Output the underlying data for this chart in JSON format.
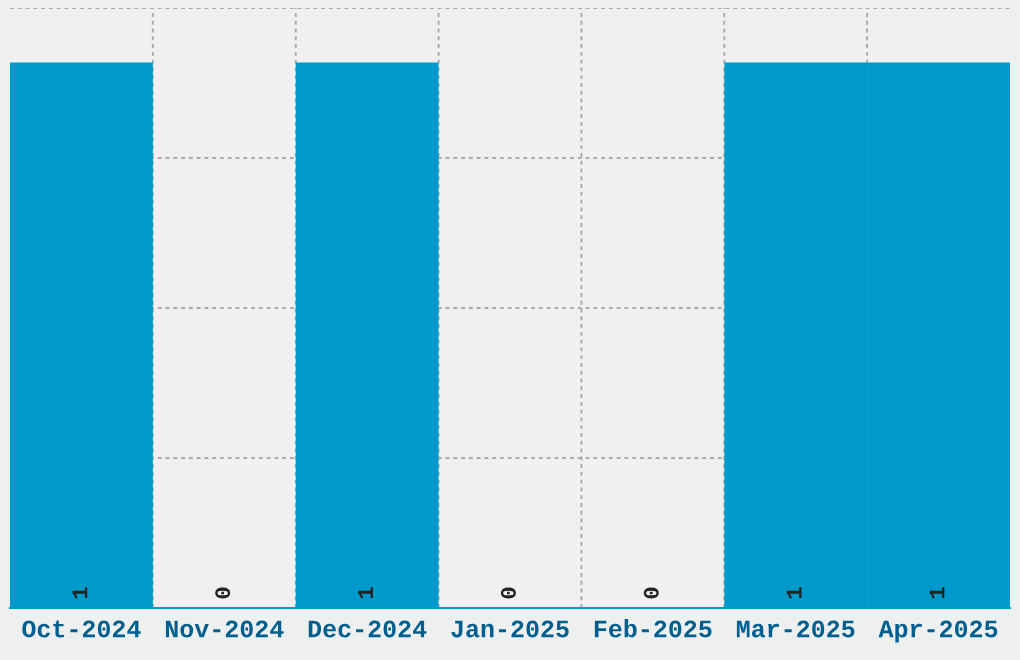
{
  "chart_data": {
    "type": "bar",
    "categories": [
      "Oct-2024",
      "Nov-2024",
      "Dec-2024",
      "Jan-2025",
      "Feb-2025",
      "Mar-2025",
      "Apr-2025"
    ],
    "values": [
      1,
      0,
      1,
      0,
      0,
      1,
      1
    ],
    "color": "#0099cc",
    "ylim": [
      0,
      1.1
    ],
    "yticks": [
      {
        "value": 0,
        "label": null
      },
      {
        "value": 0.275,
        "label": null
      },
      {
        "value": 0.55,
        "label": null
      },
      {
        "value": 0.825,
        "label": null
      },
      {
        "value": 1.1,
        "label": null
      }
    ],
    "tick_labels": "x",
    "grid": true,
    "data_labels": true
  }
}
